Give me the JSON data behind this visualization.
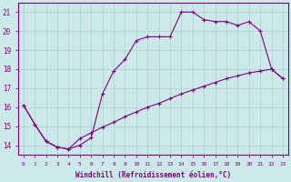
{
  "line1_x": [
    0,
    1,
    2,
    3,
    4,
    5,
    6,
    7,
    8,
    9,
    10,
    11,
    12,
    13,
    14,
    15,
    16,
    17,
    18,
    19,
    20,
    21,
    22,
    23
  ],
  "line1_y": [
    16.1,
    15.1,
    14.2,
    13.9,
    13.8,
    14.0,
    14.4,
    16.7,
    17.9,
    18.5,
    19.5,
    19.7,
    19.7,
    19.7,
    21.0,
    21.0,
    20.6,
    20.5,
    20.5,
    20.3,
    20.5,
    20.0,
    18.0,
    17.5
  ],
  "line2_x": [
    0,
    1,
    2,
    3,
    4,
    5,
    6,
    7,
    8,
    9,
    10,
    11,
    12,
    13,
    14,
    15,
    16,
    17,
    18,
    19,
    20,
    21,
    22,
    23
  ],
  "line2_y": [
    16.1,
    15.1,
    14.2,
    13.9,
    13.8,
    14.35,
    14.65,
    14.95,
    15.2,
    15.5,
    15.75,
    16.0,
    16.2,
    16.45,
    16.7,
    16.9,
    17.1,
    17.3,
    17.5,
    17.65,
    17.8,
    17.9,
    18.0,
    17.5
  ],
  "line_color": "#800080",
  "bg_color": "#cce8e8",
  "grid_color": "#aed4d4",
  "xlabel": "Windchill (Refroidissement éolien,°C)",
  "ylim": [
    13.5,
    21.5
  ],
  "xlim": [
    -0.5,
    23.5
  ],
  "yticks": [
    14,
    15,
    16,
    17,
    18,
    19,
    20,
    21
  ],
  "xticks": [
    0,
    1,
    2,
    3,
    4,
    5,
    6,
    7,
    8,
    9,
    10,
    11,
    12,
    13,
    14,
    15,
    16,
    17,
    18,
    19,
    20,
    21,
    22,
    23
  ],
  "xtick_labels": [
    "0",
    "1",
    "2",
    "3",
    "4",
    "5",
    "6",
    "7",
    "8",
    "9",
    "10",
    "11",
    "12",
    "13",
    "14",
    "15",
    "16",
    "17",
    "18",
    "19",
    "20",
    "21",
    "22",
    "23"
  ],
  "marker": "+",
  "markersize": 3.5,
  "linewidth": 0.8,
  "xlabel_fontsize": 5.5,
  "tick_fontsize": 4.5,
  "ytick_fontsize": 5.5
}
